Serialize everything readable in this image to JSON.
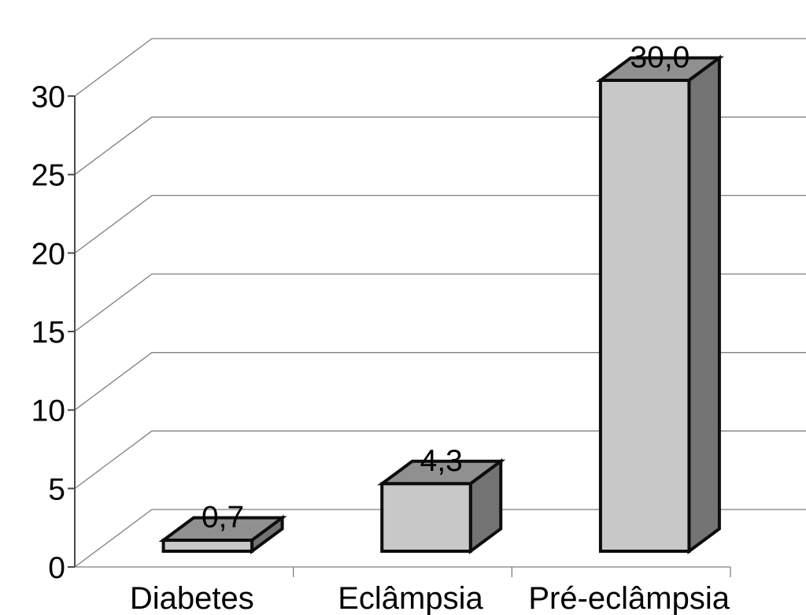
{
  "chart_data": {
    "type": "bar",
    "variant": "3d-column",
    "title": "",
    "xlabel": "",
    "ylabel": "",
    "categories": [
      "Diabetes",
      "Eclâmpsia",
      "Pré-eclâmpsia"
    ],
    "values": [
      0.7,
      4.3,
      30.0
    ],
    "value_labels": [
      "0,7",
      "4,3",
      "30,0"
    ],
    "y_tick_values": [
      0,
      5,
      10,
      15,
      20,
      25,
      30
    ],
    "y_tick_labels": [
      "0",
      "5",
      "10",
      "15",
      "20",
      "25",
      "30"
    ],
    "ylim": [
      0,
      30
    ],
    "grid": true,
    "legend": "none",
    "decimal_separator": ",",
    "colors": {
      "background": "#ffffff",
      "bar_front": "#c8c8c8",
      "bar_top": "#909090",
      "bar_side": "#737373",
      "bar_outline": "#0d0d0d",
      "gridline": "#7f7f7f",
      "axis": "#4a4a4a",
      "text": "#000000"
    }
  }
}
